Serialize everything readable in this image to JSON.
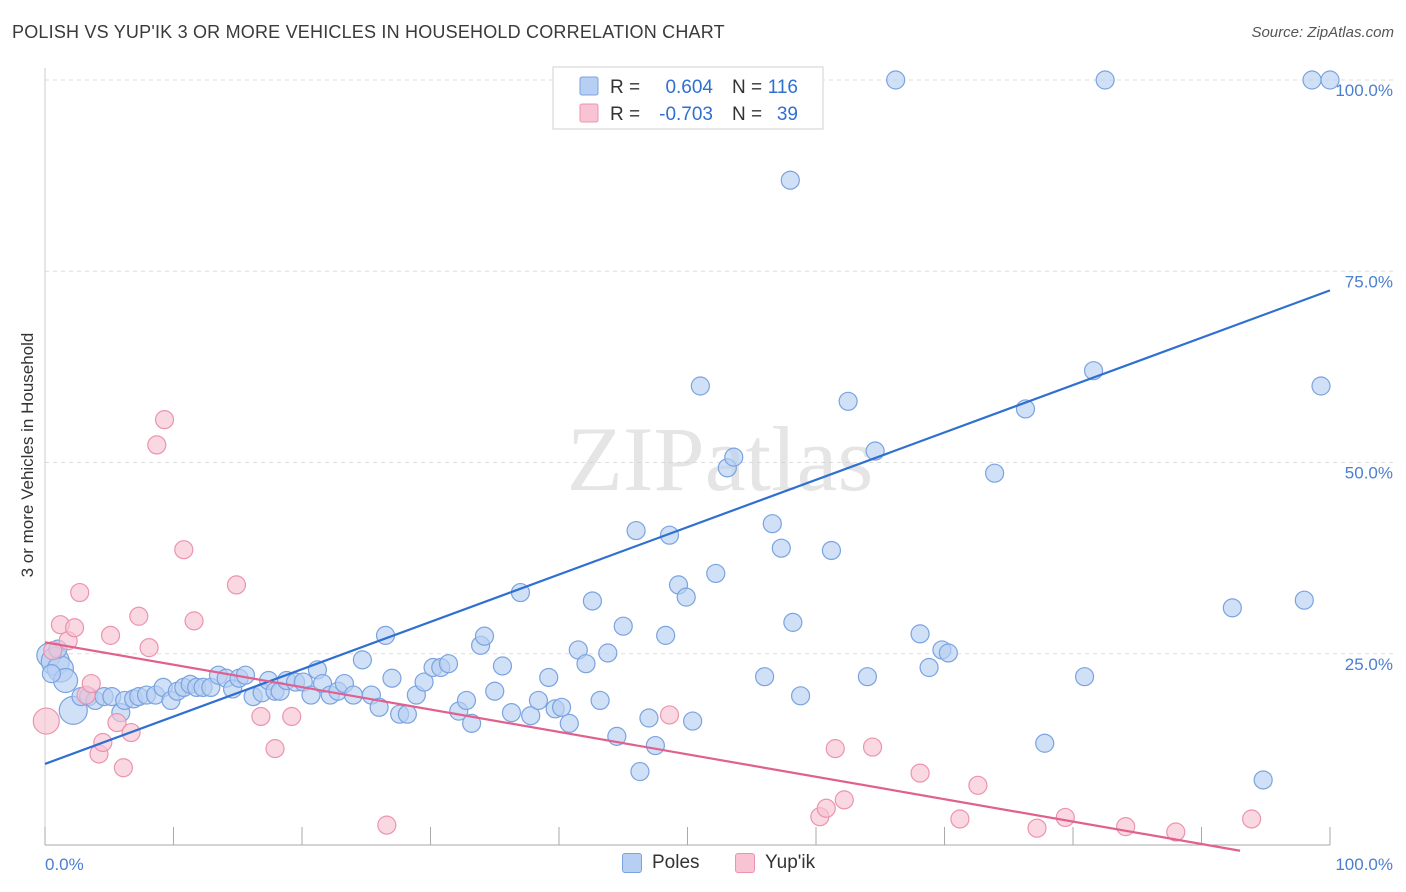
{
  "title": "POLISH VS YUP'IK 3 OR MORE VEHICLES IN HOUSEHOLD CORRELATION CHART",
  "source": "Source: ZipAtlas.com",
  "watermark": "ZIPatlas",
  "legend_stats": [
    {
      "r_label": "R =",
      "r_value": "0.604",
      "n_label": "N =",
      "n_value": "116"
    },
    {
      "r_label": "R =",
      "r_value": "-0.703",
      "n_label": "N =",
      "n_value": "39"
    }
  ],
  "bottom_legend": [
    {
      "label": "Poles",
      "color": "#a9c6f0"
    },
    {
      "label": "Yup'ik",
      "color": "#f6b8cc"
    }
  ],
  "colors": {
    "blue_fill": "#b7cff3",
    "blue_stroke": "#7aa3e0",
    "blue_line": "#2f6fd2",
    "pink_fill": "#f8c3d3",
    "pink_stroke": "#ec93b0",
    "pink_line": "#e0608e",
    "tick_text": "#4a7fd0",
    "grid": "#dddddd"
  },
  "chart_data": {
    "type": "scatter",
    "title": "POLISH VS YUP'IK 3 OR MORE VEHICLES IN HOUSEHOLD CORRELATION CHART",
    "xlabel": "",
    "ylabel": "3 or more Vehicles in Household",
    "xlim": [
      0,
      100
    ],
    "ylim": [
      0,
      100
    ],
    "x_tick_labels": [
      "0.0%",
      "100.0%"
    ],
    "y_ticks": [
      25,
      50,
      75,
      100
    ],
    "y_tick_labels": [
      "25.0%",
      "50.0%",
      "75.0%",
      "100.0%"
    ],
    "grid": true,
    "series": [
      {
        "name": "Poles",
        "r": 0.604,
        "n": 116,
        "trend": {
          "x": [
            0,
            100
          ],
          "y": [
            10.6,
            72.5
          ]
        },
        "points": [
          [
            0.3,
            24.8
          ],
          [
            0.8,
            24.0
          ],
          [
            1.2,
            23.0
          ],
          [
            1.6,
            21.5
          ],
          [
            2.2,
            17.6
          ],
          [
            2.8,
            19.4
          ],
          [
            3.4,
            19.4
          ],
          [
            3.9,
            18.9
          ],
          [
            4.6,
            19.4
          ],
          [
            5.2,
            19.4
          ],
          [
            5.9,
            17.3
          ],
          [
            6.2,
            18.9
          ],
          [
            6.9,
            19.1
          ],
          [
            7.3,
            19.4
          ],
          [
            7.9,
            19.6
          ],
          [
            8.6,
            19.6
          ],
          [
            9.2,
            20.6
          ],
          [
            9.8,
            18.9
          ],
          [
            10.3,
            20.1
          ],
          [
            10.8,
            20.6
          ],
          [
            11.3,
            21.0
          ],
          [
            11.8,
            20.6
          ],
          [
            12.3,
            20.6
          ],
          [
            12.9,
            20.6
          ],
          [
            13.5,
            22.2
          ],
          [
            14.1,
            21.8
          ],
          [
            14.6,
            20.4
          ],
          [
            15.1,
            21.8
          ],
          [
            15.6,
            22.2
          ],
          [
            16.2,
            19.4
          ],
          [
            16.9,
            19.9
          ],
          [
            17.4,
            21.5
          ],
          [
            17.9,
            20.1
          ],
          [
            18.3,
            20.1
          ],
          [
            18.8,
            21.5
          ],
          [
            19.5,
            21.3
          ],
          [
            20.1,
            21.3
          ],
          [
            20.7,
            19.6
          ],
          [
            21.2,
            22.9
          ],
          [
            21.6,
            21.1
          ],
          [
            22.2,
            19.6
          ],
          [
            22.8,
            20.1
          ],
          [
            23.3,
            21.1
          ],
          [
            24.0,
            19.6
          ],
          [
            24.7,
            24.2
          ],
          [
            25.4,
            19.6
          ],
          [
            26.0,
            18.0
          ],
          [
            26.5,
            27.4
          ],
          [
            27.0,
            21.8
          ],
          [
            27.6,
            17.1
          ],
          [
            28.2,
            17.1
          ],
          [
            28.9,
            19.6
          ],
          [
            29.5,
            21.3
          ],
          [
            30.2,
            23.2
          ],
          [
            30.8,
            23.2
          ],
          [
            31.4,
            23.7
          ],
          [
            32.2,
            17.5
          ],
          [
            32.8,
            18.9
          ],
          [
            33.2,
            15.9
          ],
          [
            33.9,
            26.1
          ],
          [
            34.2,
            27.3
          ],
          [
            35.0,
            20.1
          ],
          [
            35.6,
            23.4
          ],
          [
            36.3,
            17.3
          ],
          [
            37.0,
            33.0
          ],
          [
            37.8,
            16.9
          ],
          [
            38.4,
            18.9
          ],
          [
            39.2,
            21.9
          ],
          [
            39.7,
            17.8
          ],
          [
            40.2,
            18.0
          ],
          [
            40.8,
            15.9
          ],
          [
            41.5,
            25.5
          ],
          [
            42.1,
            23.7
          ],
          [
            42.6,
            31.9
          ],
          [
            43.2,
            18.9
          ],
          [
            43.8,
            25.1
          ],
          [
            44.5,
            14.2
          ],
          [
            45.0,
            28.6
          ],
          [
            46.0,
            41.1
          ],
          [
            46.3,
            9.6
          ],
          [
            47.0,
            16.6
          ],
          [
            47.5,
            13.0
          ],
          [
            48.3,
            27.4
          ],
          [
            48.6,
            40.5
          ],
          [
            49.3,
            34.0
          ],
          [
            49.9,
            32.4
          ],
          [
            50.4,
            16.2
          ],
          [
            51.0,
            60.0
          ],
          [
            52.2,
            35.5
          ],
          [
            53.1,
            49.3
          ],
          [
            53.6,
            50.7
          ],
          [
            56.0,
            22.0
          ],
          [
            56.6,
            42.0
          ],
          [
            57.3,
            38.8
          ],
          [
            58.0,
            86.9
          ],
          [
            58.2,
            29.1
          ],
          [
            58.8,
            19.5
          ],
          [
            61.2,
            38.5
          ],
          [
            62.5,
            58.0
          ],
          [
            64.0,
            22.0
          ],
          [
            64.6,
            51.5
          ],
          [
            66.2,
            100.0
          ],
          [
            68.1,
            27.6
          ],
          [
            68.8,
            23.2
          ],
          [
            69.8,
            25.5
          ],
          [
            70.3,
            25.1
          ],
          [
            73.9,
            48.6
          ],
          [
            76.3,
            57.0
          ],
          [
            77.8,
            13.3
          ],
          [
            80.9,
            22.0
          ],
          [
            81.6,
            62.0
          ],
          [
            82.5,
            100.0
          ],
          [
            92.4,
            31.0
          ],
          [
            94.8,
            8.5
          ],
          [
            98.0,
            32.0
          ],
          [
            98.6,
            100.0
          ],
          [
            99.3,
            60.0
          ],
          [
            100.0,
            100.0
          ],
          [
            0.5,
            22.4
          ],
          [
            1.0,
            25.6
          ]
        ],
        "sizes": "mostly small, a few large clusters near x=0-3"
      },
      {
        "name": "Yup'ik",
        "r": -0.703,
        "n": 39,
        "trend": {
          "x": [
            0,
            100
          ],
          "y": [
            26.5,
            -2.8
          ]
        },
        "points": [
          [
            0.1,
            16.2
          ],
          [
            0.6,
            25.4
          ],
          [
            1.2,
            28.8
          ],
          [
            1.8,
            26.7
          ],
          [
            2.3,
            28.4
          ],
          [
            2.7,
            33.0
          ],
          [
            3.2,
            19.6
          ],
          [
            3.6,
            21.1
          ],
          [
            4.2,
            11.9
          ],
          [
            4.5,
            13.4
          ],
          [
            5.1,
            27.4
          ],
          [
            5.6,
            16.0
          ],
          [
            6.1,
            10.1
          ],
          [
            6.7,
            14.7
          ],
          [
            7.3,
            29.9
          ],
          [
            8.1,
            25.8
          ],
          [
            8.7,
            52.3
          ],
          [
            9.3,
            55.6
          ],
          [
            10.8,
            38.6
          ],
          [
            11.6,
            29.3
          ],
          [
            14.9,
            34.0
          ],
          [
            16.8,
            16.8
          ],
          [
            17.9,
            12.6
          ],
          [
            19.2,
            16.8
          ],
          [
            26.6,
            2.6
          ],
          [
            48.6,
            17.0
          ],
          [
            60.3,
            3.7
          ],
          [
            60.8,
            4.8
          ],
          [
            61.5,
            12.6
          ],
          [
            62.2,
            5.9
          ],
          [
            64.4,
            12.8
          ],
          [
            68.1,
            9.4
          ],
          [
            71.2,
            3.4
          ],
          [
            72.6,
            7.8
          ],
          [
            77.2,
            2.2
          ],
          [
            79.4,
            3.6
          ],
          [
            84.1,
            2.4
          ],
          [
            88.0,
            1.7
          ],
          [
            93.9,
            3.4
          ]
        ]
      }
    ]
  }
}
